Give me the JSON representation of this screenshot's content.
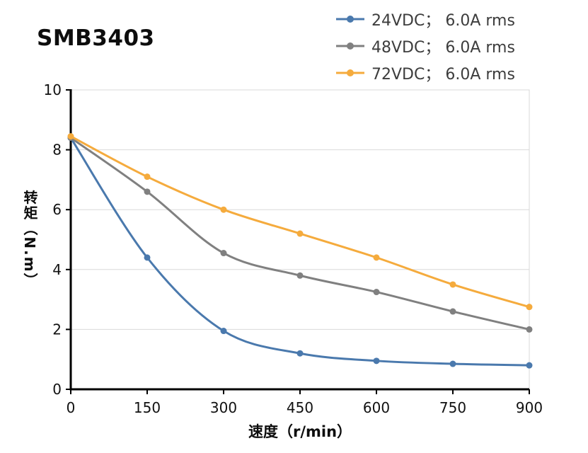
{
  "chart_data": {
    "type": "line",
    "title": "SMB3403",
    "xlabel": "速度（r/min）",
    "ylabel": "转矩（N.m）",
    "x": [
      0,
      150,
      300,
      450,
      600,
      750,
      900
    ],
    "xticks": [
      0,
      150,
      300,
      450,
      600,
      750,
      900
    ],
    "yticks": [
      0,
      2,
      4,
      6,
      8,
      10
    ],
    "xlim": [
      0,
      900
    ],
    "ylim": [
      0,
      10
    ],
    "grid": "horizontal",
    "legend_position": "top-right",
    "style": {
      "grid_color": "#d9d9d9",
      "axis_color": "#000000",
      "text_color": "#111111",
      "background": "#ffffff"
    },
    "series": [
      {
        "name": "24VDC； 6.0A rms",
        "color": "#4a79ad",
        "values": [
          8.4,
          4.4,
          1.95,
          1.2,
          0.95,
          0.85,
          0.8
        ]
      },
      {
        "name": "48VDC； 6.0A rms",
        "color": "#808080",
        "values": [
          8.4,
          6.6,
          4.55,
          3.8,
          3.25,
          2.6,
          2.0
        ]
      },
      {
        "name": "72VDC； 6.0A rms",
        "color": "#f5ab3d",
        "values": [
          8.45,
          7.1,
          6.0,
          5.2,
          4.4,
          3.5,
          2.75
        ]
      }
    ]
  }
}
